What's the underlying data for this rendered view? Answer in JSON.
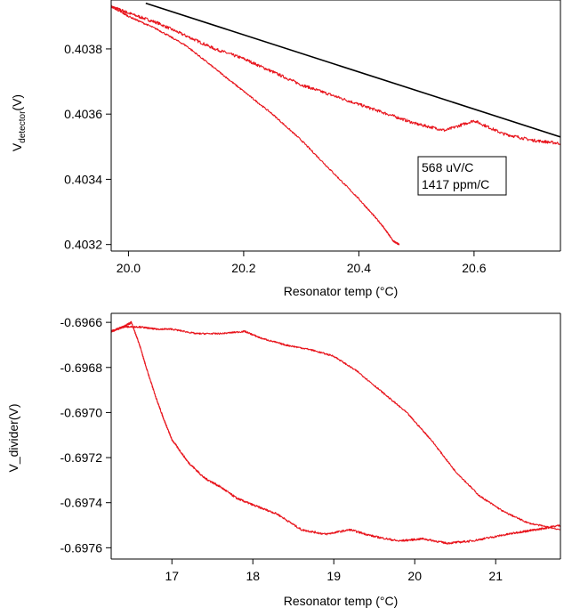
{
  "chart_data": [
    {
      "type": "line",
      "xlabel": "Resonator temp (°C)",
      "ylabel_main": "V",
      "ylabel_sub": "detector",
      "ylabel_unit": "(V)",
      "xlim": [
        19.97,
        20.75
      ],
      "ylim": [
        0.40318,
        0.40395
      ],
      "x_ticks": [
        20.0,
        20.2,
        20.4,
        20.6
      ],
      "x_tick_labels": [
        "20.0",
        "20.2",
        "20.4",
        "20.6"
      ],
      "y_ticks": [
        0.4032,
        0.4034,
        0.4036,
        0.4038
      ],
      "y_tick_labels": [
        "0.4032",
        "0.4034",
        "0.4036",
        "0.4038"
      ],
      "annotation": [
        "568 uV/C",
        "1417 ppm/C"
      ],
      "series": [
        {
          "color": "#e8141c",
          "noise": 4.5e-06,
          "x": [
            19.97,
            20.0,
            20.05,
            20.1,
            20.15,
            20.2,
            20.25,
            20.3,
            20.35,
            20.4,
            20.45,
            20.5,
            20.55,
            20.6,
            20.65,
            20.7,
            20.75
          ],
          "y": [
            0.40393,
            0.40391,
            0.40388,
            0.40384,
            0.4038,
            0.40377,
            0.40373,
            0.40369,
            0.40366,
            0.40363,
            0.4036,
            0.40357,
            0.40355,
            0.40358,
            0.40354,
            0.40352,
            0.40351
          ]
        },
        {
          "color": "#e8141c",
          "noise": 2.5e-06,
          "x": [
            19.97,
            20.0,
            20.05,
            20.1,
            20.15,
            20.2,
            20.25,
            20.3,
            20.35,
            20.4,
            20.44,
            20.46,
            20.47
          ],
          "y": [
            0.40393,
            0.4039,
            0.40386,
            0.40381,
            0.40374,
            0.40367,
            0.4036,
            0.40352,
            0.40343,
            0.40334,
            0.40326,
            0.40321,
            0.4032
          ]
        },
        {
          "color": "#000000",
          "noise": 0,
          "x": [
            20.03,
            20.75
          ],
          "y": [
            0.40394,
            0.40353
          ]
        }
      ]
    },
    {
      "type": "line",
      "xlabel": "Resonator temp (°C)",
      "ylabel": "V_divider(V)",
      "xlim": [
        16.25,
        21.8
      ],
      "ylim": [
        -0.69765,
        -0.69656
      ],
      "x_ticks": [
        17,
        18,
        19,
        20,
        21
      ],
      "x_tick_labels": [
        "17",
        "18",
        "19",
        "20",
        "21"
      ],
      "y_ticks": [
        -0.6976,
        -0.6974,
        -0.6972,
        -0.697,
        -0.6968,
        -0.6966
      ],
      "y_tick_labels": [
        "-0.6976",
        "-0.6974",
        "-0.6972",
        "-0.6970",
        "-0.6968",
        "-0.6966"
      ],
      "series": [
        {
          "color": "#e8141c",
          "noise": 4.5e-06,
          "x": [
            16.25,
            16.4,
            16.5,
            16.6,
            16.7,
            16.8,
            16.9,
            17.0,
            17.2,
            17.4,
            17.6,
            17.8,
            18.0,
            18.3,
            18.6,
            18.9,
            19.2,
            19.5,
            19.8,
            20.1,
            20.4,
            20.7,
            21.0,
            21.3,
            21.5,
            21.8
          ],
          "y": [
            -0.69664,
            -0.69662,
            -0.6966,
            -0.6967,
            -0.69682,
            -0.69693,
            -0.69703,
            -0.69712,
            -0.69722,
            -0.69729,
            -0.69733,
            -0.69738,
            -0.69741,
            -0.69745,
            -0.69752,
            -0.69754,
            -0.69752,
            -0.69755,
            -0.69757,
            -0.69756,
            -0.69758,
            -0.69757,
            -0.69755,
            -0.69753,
            -0.69752,
            -0.6975
          ]
        },
        {
          "color": "#e8141c",
          "noise": 3.5e-06,
          "x": [
            16.4,
            16.6,
            16.8,
            17.0,
            17.3,
            17.6,
            17.9,
            18.1,
            18.4,
            18.7,
            19.0,
            19.3,
            19.6,
            19.9,
            20.2,
            20.5,
            20.8,
            21.1,
            21.4,
            21.8
          ],
          "y": [
            -0.69662,
            -0.69662,
            -0.69663,
            -0.69663,
            -0.69665,
            -0.69665,
            -0.69664,
            -0.69667,
            -0.6967,
            -0.69672,
            -0.69675,
            -0.69682,
            -0.69691,
            -0.697,
            -0.69712,
            -0.69726,
            -0.69737,
            -0.69744,
            -0.69749,
            -0.69752
          ]
        }
      ]
    }
  ]
}
